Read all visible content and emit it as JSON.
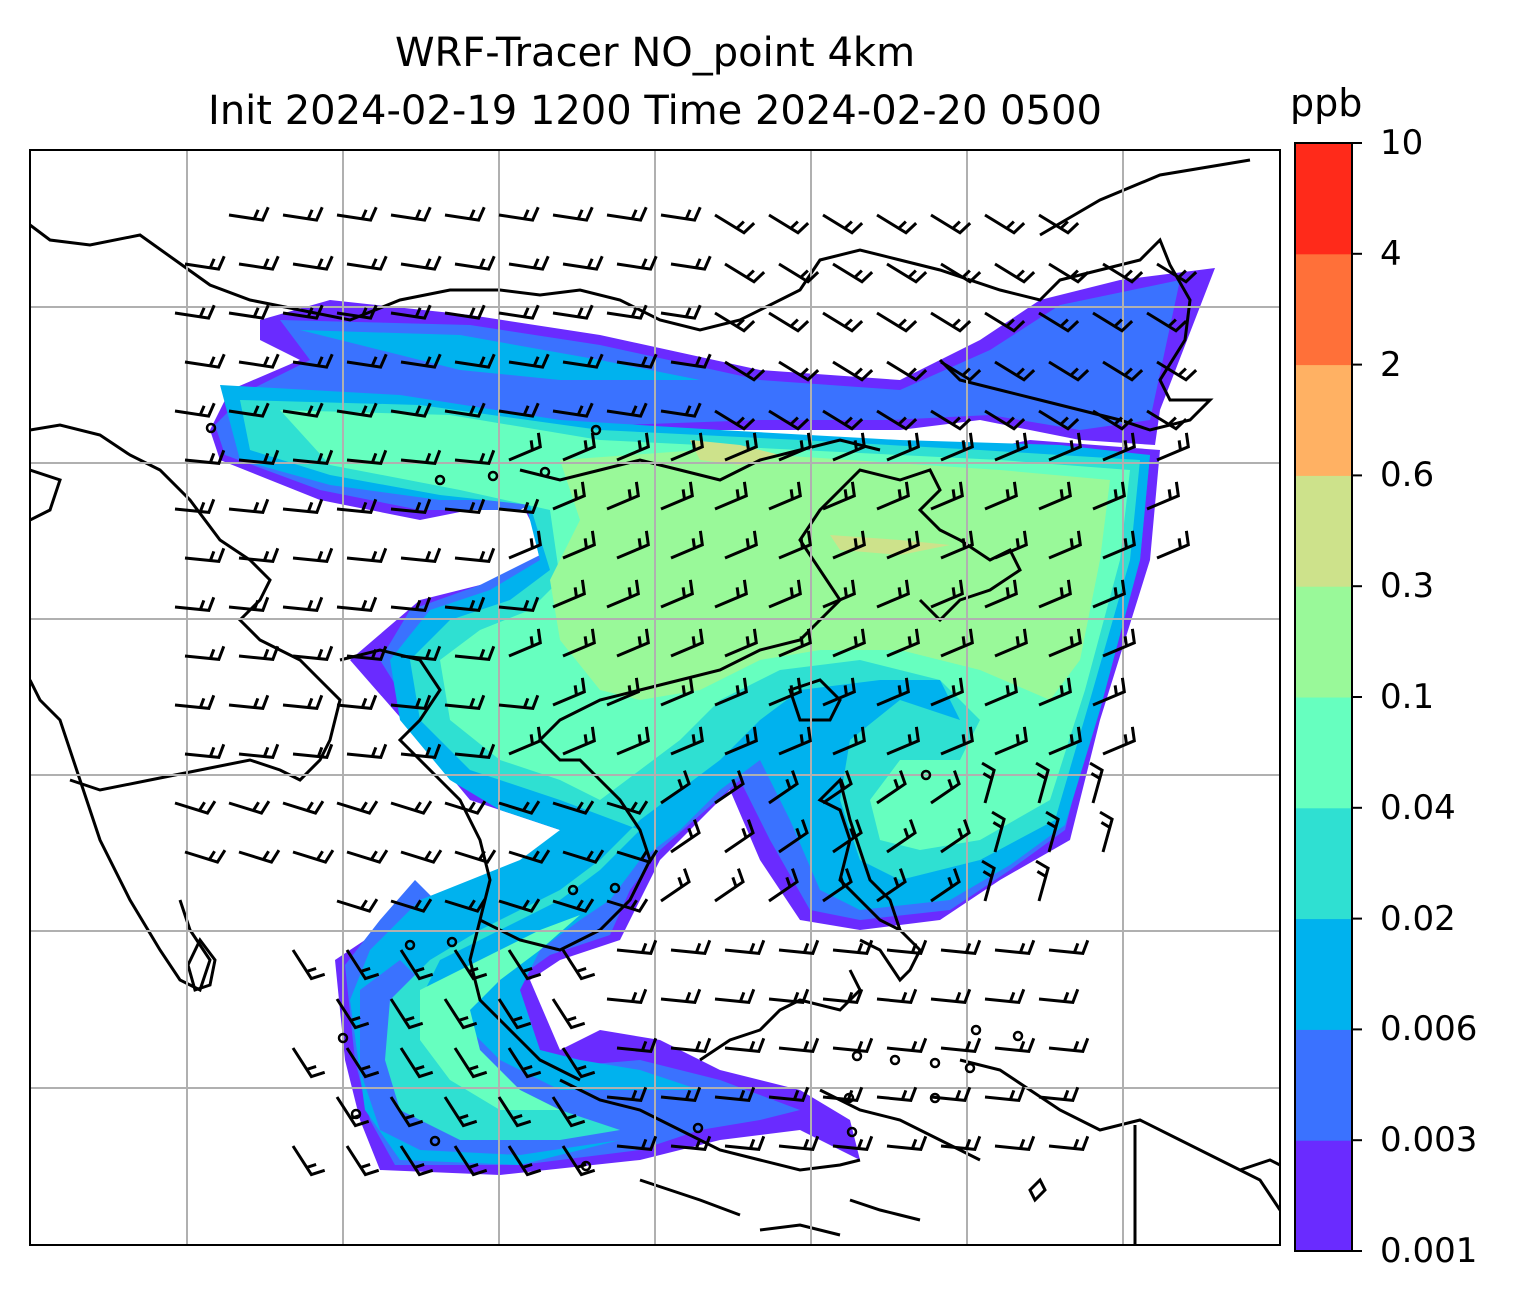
{
  "title": {
    "line1": "WRF-Tracer NO_point 4km",
    "line2": "Init 2024-02-19 1200 Time 2024-02-20 0500"
  },
  "colorbar": {
    "unit": "ppb",
    "levels": [
      "0.001",
      "0.003",
      "0.006",
      "0.02",
      "0.04",
      "0.1",
      "0.3",
      "0.6",
      "2",
      "4",
      "10"
    ],
    "colors": [
      "#6a2bff",
      "#3a72ff",
      "#00b2ee",
      "#2fe0d2",
      "#66ffbf",
      "#99f999",
      "#cde28b",
      "#ffb163",
      "#ff7039",
      "#ff2a1a"
    ]
  },
  "map": {
    "gridlines": true,
    "wind_barbs": true,
    "coastlines": true
  }
}
